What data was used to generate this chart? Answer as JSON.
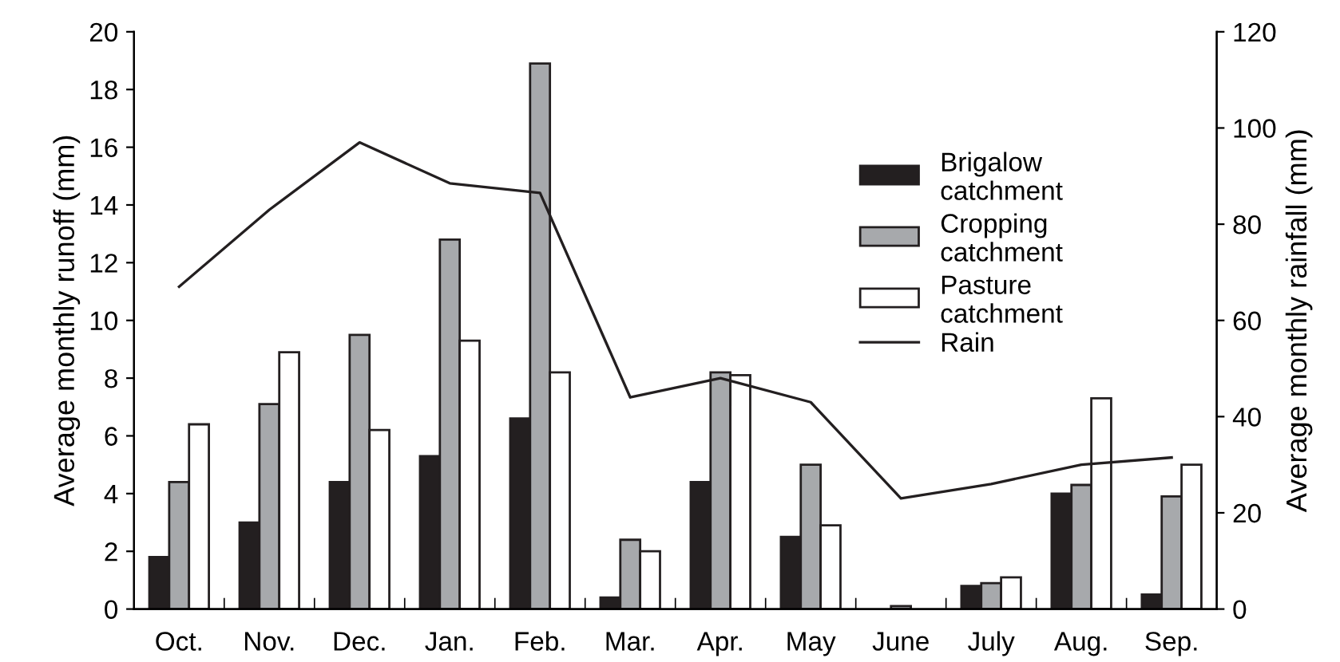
{
  "chart_data": {
    "type": "bar",
    "categories": [
      "Oct.",
      "Nov.",
      "Dec.",
      "Jan.",
      "Feb.",
      "Mar.",
      "Apr.",
      "May",
      "June",
      "July",
      "Aug.",
      "Sep."
    ],
    "ylabel": "Average monthly runoff (mm)",
    "y2label": "Average monthly rainfall (mm)",
    "ylim": [
      0,
      20
    ],
    "yticks": [
      0,
      2,
      4,
      6,
      8,
      10,
      12,
      14,
      16,
      18,
      20
    ],
    "y2lim": [
      0,
      120
    ],
    "y2ticks": [
      0,
      20,
      40,
      60,
      80,
      100,
      120
    ],
    "legend": "top right",
    "grid": false,
    "series": [
      {
        "name": "Brigalow catchment",
        "color": "#231f20",
        "values": [
          1.8,
          3.0,
          4.4,
          5.3,
          6.6,
          0.4,
          4.4,
          2.5,
          null,
          0.8,
          4.0,
          0.5
        ]
      },
      {
        "name": "Cropping catchment",
        "color": "#a7a9ac",
        "values": [
          4.4,
          7.1,
          9.5,
          12.8,
          18.9,
          2.4,
          8.2,
          5.0,
          0.1,
          0.9,
          4.3,
          3.9
        ]
      },
      {
        "name": "Pasture catchment",
        "color": "#ffffff",
        "values": [
          6.4,
          8.9,
          6.2,
          9.3,
          8.2,
          2.0,
          8.1,
          2.9,
          null,
          1.1,
          7.3,
          5.0
        ]
      },
      {
        "name": "Rain",
        "type": "line",
        "axis": "y2",
        "color": "#231f20",
        "values": [
          67,
          83,
          97,
          88.5,
          86.5,
          44,
          48,
          43,
          23,
          26,
          30,
          31.5
        ]
      }
    ]
  }
}
